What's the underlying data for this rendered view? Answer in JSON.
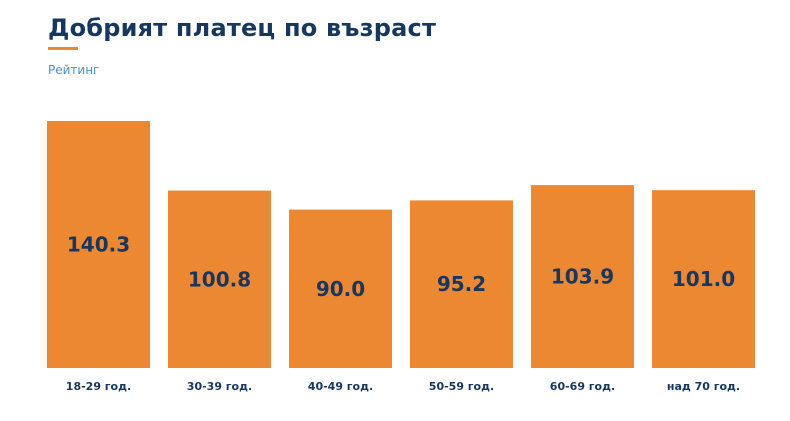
{
  "header": {
    "title": "Добрият платец по възраст",
    "subtitle": "Рейтинг"
  },
  "colors": {
    "bar": "#ed8832",
    "text": "#17375e",
    "subtitle": "#4a90c8"
  },
  "chart_data": {
    "type": "bar",
    "title": "Добрият платец по възраст",
    "subtitle": "Рейтинг",
    "categories": [
      "18-29 год.",
      "30-39 год.",
      "40-49 год.",
      "50-59 год.",
      "60-69 год.",
      "над 70 год."
    ],
    "values": [
      140.3,
      100.8,
      90.0,
      95.2,
      103.9,
      101.0
    ],
    "value_labels": [
      "140.3",
      "100.8",
      "90.0",
      "95.2",
      "103.9",
      "101.0"
    ],
    "ylim": [
      0,
      140.3
    ],
    "grid": false,
    "legend": "none"
  }
}
